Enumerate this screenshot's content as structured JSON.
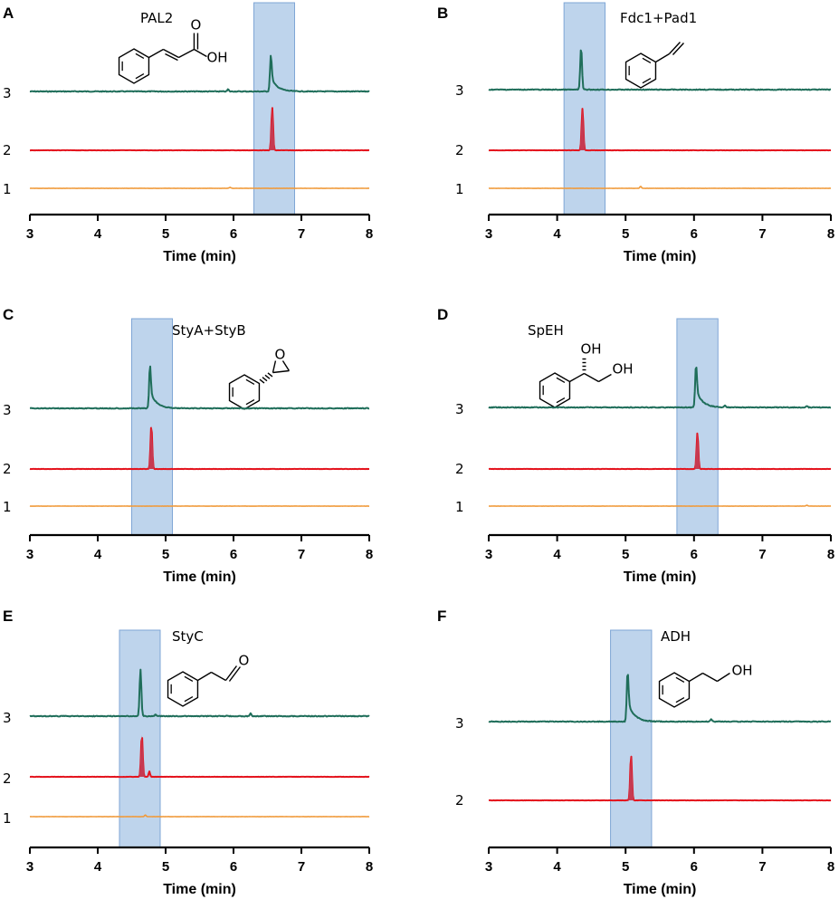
{
  "colors": {
    "trace_3": "#1f6e5a",
    "trace_2": "#e4141e",
    "trace_2_peak": "#c63a52",
    "trace_1": "#f09a3a",
    "highlight": "#a8c6e6",
    "axis": "#000000"
  },
  "chart_data": [
    {
      "type": "line",
      "panel": "A",
      "title": "PAL2",
      "structure": "cinnamic-acid",
      "structure_text": [
        "O",
        "OH"
      ],
      "xlabel": "Time (min)",
      "ylabel": "",
      "xlim": [
        3,
        8
      ],
      "xticks": [
        "3",
        "4",
        "5",
        "6",
        "7",
        "8"
      ],
      "highlight_range": [
        6.3,
        6.9
      ],
      "series": [
        {
          "name": "3",
          "baseline": 3.0,
          "peak_rt": 6.55,
          "peak_height": 1.05,
          "tailing": true,
          "minor_peaks": [
            [
              5.92,
              0.08
            ]
          ]
        },
        {
          "name": "2",
          "baseline": 1.5,
          "peak_rt": 6.57,
          "peak_height": 1.1,
          "tailing": false,
          "minor_peaks": []
        },
        {
          "name": "1",
          "baseline": 0.5,
          "peak_rt": null,
          "peak_height": 0,
          "tailing": false,
          "minor_peaks": [
            [
              5.95,
              0.04
            ]
          ]
        }
      ]
    },
    {
      "type": "line",
      "panel": "B",
      "title": "Fdc1+Pad1",
      "structure": "styrene",
      "structure_text": [],
      "xlabel": "Time (min)",
      "ylabel": "",
      "xlim": [
        3,
        8
      ],
      "xticks": [
        "3",
        "4",
        "5",
        "6",
        "7",
        "8"
      ],
      "highlight_range": [
        4.1,
        4.7
      ],
      "series": [
        {
          "name": "3",
          "baseline": 3.0,
          "peak_rt": 4.35,
          "peak_height": 1.1,
          "tailing": false,
          "minor_peaks": []
        },
        {
          "name": "2",
          "baseline": 1.5,
          "peak_rt": 4.37,
          "peak_height": 1.1,
          "tailing": false,
          "minor_peaks": []
        },
        {
          "name": "1",
          "baseline": 0.5,
          "peak_rt": null,
          "peak_height": 0,
          "tailing": false,
          "minor_peaks": [
            [
              5.22,
              0.08
            ]
          ]
        }
      ]
    },
    {
      "type": "line",
      "panel": "C",
      "title": "StyA+StyB",
      "structure": "styrene-oxide",
      "structure_text": [
        "O"
      ],
      "xlabel": "Time (min)",
      "ylabel": "",
      "xlim": [
        3,
        8
      ],
      "xticks": [
        "3",
        "4",
        "5",
        "6",
        "7",
        "8"
      ],
      "highlight_range": [
        4.5,
        5.1
      ],
      "series": [
        {
          "name": "3",
          "baseline": 3.0,
          "peak_rt": 4.77,
          "peak_height": 1.1,
          "tailing": true,
          "minor_peaks": []
        },
        {
          "name": "2",
          "baseline": 1.5,
          "peak_rt": 4.79,
          "peak_height": 1.2,
          "tailing": false,
          "minor_peaks": []
        },
        {
          "name": "1",
          "baseline": 0.5,
          "peak_rt": null,
          "peak_height": 0,
          "tailing": false,
          "minor_peaks": []
        }
      ]
    },
    {
      "type": "line",
      "panel": "D",
      "title": "SpEH",
      "structure": "phenylethane-diol",
      "structure_text": [
        "OH",
        "OH"
      ],
      "xlabel": "Time (min)",
      "ylabel": "",
      "xlim": [
        3,
        8
      ],
      "xticks": [
        "3",
        "4",
        "5",
        "6",
        "7",
        "8"
      ],
      "highlight_range": [
        5.75,
        6.35
      ],
      "series": [
        {
          "name": "3",
          "baseline": 3.0,
          "peak_rt": 6.03,
          "peak_height": 1.1,
          "tailing": true,
          "minor_peaks": [
            [
              6.45,
              0.08
            ],
            [
              7.65,
              0.05
            ]
          ]
        },
        {
          "name": "2",
          "baseline": 1.5,
          "peak_rt": 6.05,
          "peak_height": 0.95,
          "tailing": false,
          "minor_peaks": []
        },
        {
          "name": "1",
          "baseline": 0.5,
          "peak_rt": null,
          "peak_height": 0,
          "tailing": false,
          "minor_peaks": [
            [
              7.65,
              0.03
            ]
          ]
        }
      ]
    },
    {
      "type": "line",
      "panel": "E",
      "title": "StyC",
      "structure": "phenylacetaldehyde",
      "structure_text": [
        "O"
      ],
      "xlabel": "Time (min)",
      "ylabel": "",
      "xlim": [
        3,
        8
      ],
      "xticks": [
        "3",
        "4",
        "5",
        "6",
        "7",
        "8"
      ],
      "highlight_range": [
        4.32,
        4.92
      ],
      "series": [
        {
          "name": "3",
          "baseline": 3.0,
          "peak_rt": 4.63,
          "peak_height": 1.2,
          "tailing": false,
          "minor_peaks": [
            [
              4.85,
              0.06
            ],
            [
              5.9,
              0.04
            ],
            [
              6.25,
              0.12
            ]
          ]
        },
        {
          "name": "2",
          "baseline": 1.5,
          "peak_rt": 4.65,
          "peak_height": 1.0,
          "tailing": false,
          "minor_peaks": [
            [
              4.76,
              0.2
            ]
          ]
        },
        {
          "name": "1",
          "baseline": 0.5,
          "peak_rt": null,
          "peak_height": 0,
          "tailing": false,
          "minor_peaks": [
            [
              4.7,
              0.06
            ]
          ]
        }
      ]
    },
    {
      "type": "line",
      "panel": "F",
      "title": "ADH",
      "structure": "phenylethanol",
      "structure_text": [
        "OH"
      ],
      "xlabel": "Time (min)",
      "ylabel": "",
      "xlim": [
        3,
        8
      ],
      "xticks": [
        "3",
        "4",
        "5",
        "6",
        "7",
        "8"
      ],
      "highlight_range": [
        4.78,
        5.38
      ],
      "series": [
        {
          "name": "3",
          "baseline": 3.0,
          "peak_rt": 5.03,
          "peak_height": 1.25,
          "tailing": true,
          "minor_peaks": [
            [
              6.25,
              0.1
            ]
          ]
        },
        {
          "name": "2",
          "baseline": 1.5,
          "peak_rt": 5.08,
          "peak_height": 1.15,
          "tailing": false,
          "minor_peaks": []
        }
      ]
    }
  ]
}
